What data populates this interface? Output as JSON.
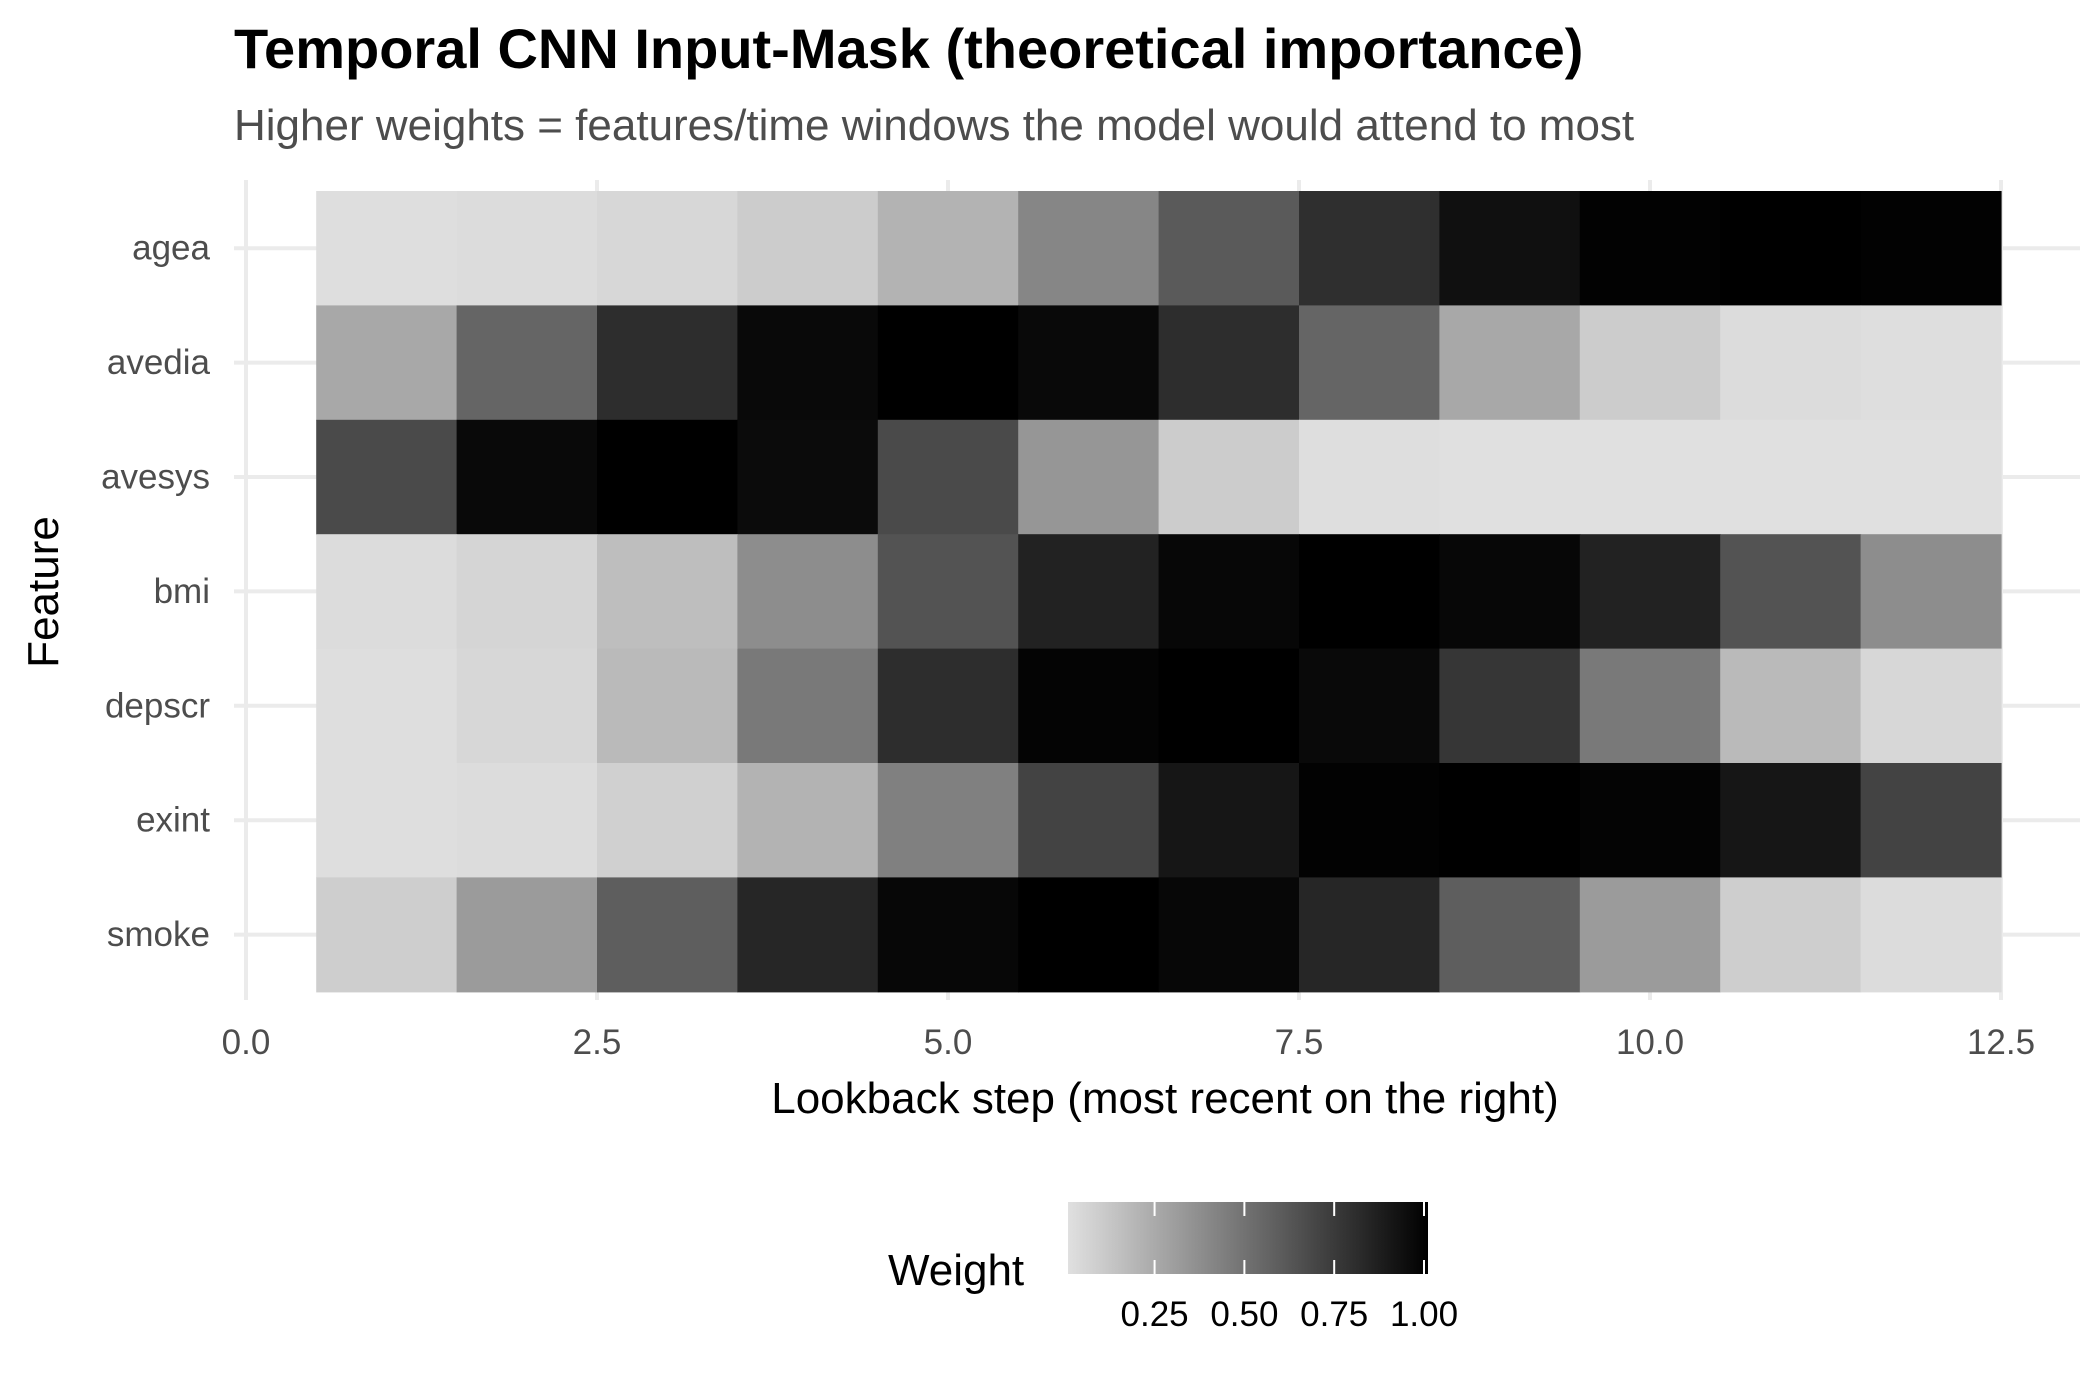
{
  "chart_data": {
    "type": "heatmap",
    "title": "Temporal CNN Input-Mask (theoretical importance)",
    "subtitle": "Higher weights = features/time windows the model would attend to most",
    "xlabel": "Lookback step (most recent on the right)",
    "ylabel": "Feature",
    "xlim": [
      0,
      12.5
    ],
    "x_ticks": [
      0.0,
      2.5,
      5.0,
      7.5,
      10.0,
      12.5
    ],
    "x_tick_labels": [
      "0.0",
      "2.5",
      "5.0",
      "7.5",
      "10.0",
      "12.5"
    ],
    "x": [
      1,
      2,
      3,
      4,
      5,
      6,
      7,
      8,
      9,
      10,
      11,
      12
    ],
    "features": [
      "agea",
      "avedia",
      "avesys",
      "bmi",
      "depscr",
      "exint",
      "smoke"
    ],
    "values": [
      [
        0.01,
        0.02,
        0.04,
        0.09,
        0.2,
        0.4,
        0.6,
        0.79,
        0.93,
        0.99,
        1.0,
        0.99
      ],
      [
        0.25,
        0.55,
        0.8,
        0.96,
        1.0,
        0.96,
        0.8,
        0.55,
        0.25,
        0.09,
        0.02,
        0.01
      ],
      [
        0.67,
        0.96,
        1.0,
        0.95,
        0.67,
        0.33,
        0.09,
        0.01,
        0.0,
        0.0,
        0.0,
        0.0
      ],
      [
        0.02,
        0.05,
        0.15,
        0.37,
        0.63,
        0.85,
        0.97,
        1.0,
        0.97,
        0.85,
        0.63,
        0.37
      ],
      [
        0.01,
        0.04,
        0.17,
        0.46,
        0.8,
        0.98,
        1.0,
        0.96,
        0.76,
        0.46,
        0.17,
        0.04
      ],
      [
        0.01,
        0.02,
        0.07,
        0.2,
        0.43,
        0.7,
        0.9,
        0.99,
        1.0,
        0.98,
        0.9,
        0.7
      ],
      [
        0.08,
        0.31,
        0.58,
        0.83,
        0.97,
        1.0,
        0.97,
        0.83,
        0.58,
        0.31,
        0.08,
        0.02
      ]
    ],
    "color_scale": {
      "low": "#e0e0e0",
      "high": "#000000",
      "domain": [
        0,
        1
      ]
    },
    "legend": {
      "title": "Weight",
      "tick_values": [
        0.25,
        0.5,
        0.75,
        1.0
      ],
      "tick_labels": [
        "0.25",
        "0.50",
        "0.75",
        "1.00"
      ],
      "position": "bottom"
    },
    "grid": true
  }
}
